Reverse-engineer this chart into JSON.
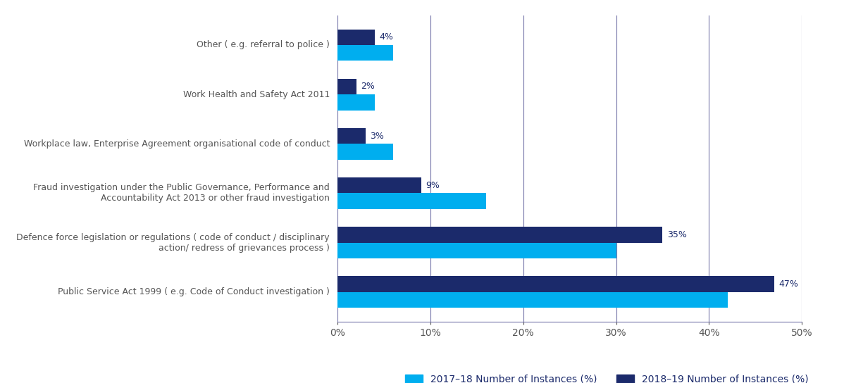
{
  "categories": [
    "Other ( e.g. referral to police )",
    "Work Health and Safety Act 2011",
    "Workplace law, Enterprise Agreement organisational code of conduct",
    "Fraud investigation under the Public Governance, Performance and\nAccountability Act 2013 or other fraud investigation",
    "Defence force legislation or regulations ( code of conduct / disciplinary\naction/ redress of grievances process )",
    "Public Service Act 1999 ( e.g. Code of Conduct investigation )"
  ],
  "values_2017": [
    6,
    4,
    6,
    16,
    30,
    42
  ],
  "values_2018": [
    4,
    2,
    3,
    9,
    35,
    47
  ],
  "labels_2018": [
    "4%",
    "2%",
    "3%",
    "9%",
    "35%",
    "47%"
  ],
  "color_2017": "#00AEEF",
  "color_2018": "#1B2A6B",
  "xlim": [
    0,
    50
  ],
  "xticks": [
    0,
    10,
    20,
    30,
    40,
    50
  ],
  "xticklabels": [
    "0%",
    "10%",
    "20%",
    "30%",
    "40%",
    "50%"
  ],
  "legend_2017": "2017–18 Number of Instances (%)",
  "legend_2018": "2018–19 Number of Instances (%)",
  "background_color": "#ffffff",
  "bar_height": 0.32,
  "grid_color": "#7777aa",
  "label_color": "#1B2A6B",
  "tick_label_color": "#555555",
  "category_label_color": "#555555"
}
